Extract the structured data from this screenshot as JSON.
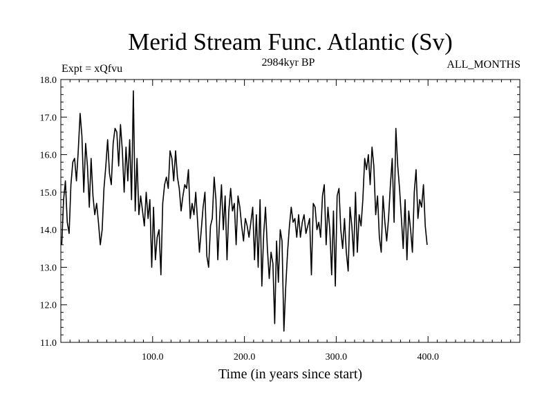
{
  "chart_data": {
    "type": "line",
    "title": "Merid Stream Func. Atlantic (Sv)",
    "subtitle_left": "Expt = xQfvu",
    "subtitle_center": "2984kyr BP",
    "subtitle_right": "ALL_MONTHS",
    "xlabel": "Time (in years since start)",
    "ylabel": "",
    "xlim": [
      0,
      500
    ],
    "ylim": [
      11.0,
      18.0
    ],
    "x_ticks": [
      100,
      200,
      300,
      400
    ],
    "x_tick_labels": [
      "100.0",
      "200.0",
      "300.0",
      "400.0"
    ],
    "y_ticks": [
      11,
      12,
      13,
      14,
      15,
      16,
      17,
      18
    ],
    "y_tick_labels": [
      "11.0",
      "12.0",
      "13.0",
      "14.0",
      "15.0",
      "16.0",
      "17.0",
      "18.0"
    ],
    "series": [
      {
        "name": "Merid Stream Func. Atlantic",
        "color": "#000000",
        "x_start": 1,
        "x_step": 2,
        "values": [
          13.6,
          14.8,
          15.3,
          14.2,
          13.9,
          15.2,
          15.8,
          15.9,
          15.3,
          16.1,
          17.1,
          16.5,
          15.0,
          16.3,
          15.7,
          14.6,
          15.9,
          14.9,
          14.4,
          14.7,
          14.2,
          13.6,
          14.0,
          15.1,
          15.7,
          16.4,
          15.5,
          15.2,
          16.3,
          16.7,
          16.6,
          15.7,
          16.8,
          16.1,
          15.0,
          16.2,
          15.3,
          16.4,
          14.8,
          17.7,
          14.5,
          15.9,
          14.4,
          14.9,
          14.5,
          14.1,
          15.0,
          14.3,
          14.8,
          13.0,
          14.6,
          13.2,
          13.8,
          14.0,
          12.8,
          14.7,
          15.2,
          15.4,
          15.1,
          16.1,
          15.9,
          15.3,
          16.1,
          15.4,
          15.1,
          14.5,
          14.9,
          15.2,
          15.1,
          15.6,
          14.3,
          14.7,
          14.4,
          15.0,
          14.2,
          13.4,
          14.0,
          14.6,
          15.0,
          13.3,
          13.0,
          14.1,
          14.3,
          15.4,
          14.8,
          13.2,
          14.3,
          15.2,
          14.0,
          14.9,
          13.2,
          14.5,
          15.1,
          14.5,
          14.7,
          13.6,
          14.9,
          14.6,
          14.1,
          13.7,
          14.3,
          14.1,
          13.8,
          14.2,
          14.6,
          13.2,
          14.4,
          13.0,
          14.8,
          12.5,
          13.9,
          14.6,
          13.5,
          12.7,
          13.4,
          13.1,
          11.5,
          13.7,
          12.6,
          14.0,
          13.7,
          11.3,
          12.5,
          13.4,
          14.1,
          14.6,
          14.2,
          14.3,
          13.8,
          14.4,
          13.8,
          14.2,
          14.4,
          13.9,
          14.1,
          14.3,
          12.8,
          14.7,
          14.6,
          14.0,
          14.2,
          13.8,
          14.9,
          15.2,
          13.6,
          14.6,
          14.0,
          12.8,
          14.5,
          12.5,
          14.9,
          15.1,
          14.0,
          13.5,
          14.3,
          13.4,
          12.9,
          14.6,
          14.1,
          13.3,
          15.0,
          13.4,
          14.4,
          14.1,
          14.8,
          15.9,
          15.6,
          16.0,
          15.2,
          16.2,
          15.7,
          14.4,
          14.9,
          13.8,
          13.4,
          14.9,
          14.2,
          13.7,
          14.3,
          15.2,
          15.9,
          14.2,
          16.7,
          15.7,
          15.1,
          14.3,
          13.5,
          14.8,
          13.2,
          14.5,
          14.0,
          13.4,
          15.0,
          15.6,
          14.3,
          14.8,
          14.6,
          15.2,
          14.1,
          13.6
        ]
      }
    ]
  }
}
